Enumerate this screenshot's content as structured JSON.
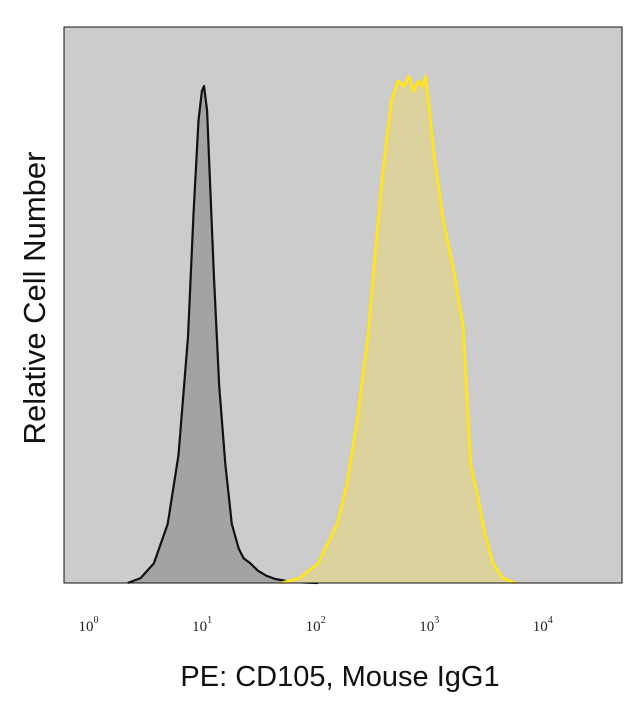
{
  "chart_data": {
    "type": "area",
    "xlabel": "PE: CD105, Mouse IgG1",
    "ylabel": "Relative Cell Number",
    "x_scale": "log",
    "xlim": [
      0.55,
      45000
    ],
    "ylim": [
      0,
      1.13
    ],
    "grid": false,
    "x_ticks": [
      {
        "base": "10",
        "exp": "0",
        "value": 1
      },
      {
        "base": "10",
        "exp": "1",
        "value": 10
      },
      {
        "base": "10",
        "exp": "2",
        "value": 100
      },
      {
        "base": "10",
        "exp": "3",
        "value": 1000
      },
      {
        "base": "10",
        "exp": "4",
        "value": 10000
      }
    ],
    "colors": {
      "plot_background": "#cccccc",
      "control_fill": "#a3a3a3",
      "control_line": "#111111",
      "stained_fill": "#dbd29e",
      "stained_line": "#ffe51a"
    },
    "series": [
      {
        "role": "control",
        "x": [
          2.0,
          2.6,
          3.4,
          4.5,
          5.6,
          6.8,
          7.6,
          8.4,
          9.0,
          9.4,
          10.0,
          10.6,
          11.5,
          12.8,
          14.5,
          16.5,
          19.0,
          21.0,
          24.0,
          28.0,
          33.0,
          40.0,
          50.0,
          70.0,
          95.0
        ],
        "y": [
          0.0,
          0.01,
          0.04,
          0.12,
          0.26,
          0.5,
          0.75,
          0.94,
          1.0,
          1.01,
          0.96,
          0.82,
          0.62,
          0.4,
          0.24,
          0.12,
          0.07,
          0.05,
          0.04,
          0.025,
          0.015,
          0.008,
          0.004,
          0.001,
          0.0
        ]
      },
      {
        "role": "stained",
        "x": [
          45,
          65,
          95,
          140,
          170,
          210,
          260,
          300,
          340,
          380,
          420,
          480,
          540,
          600,
          660,
          720,
          780,
          840,
          920,
          1000,
          1200,
          1500,
          1800,
          2100,
          2400,
          2800,
          3300,
          4000,
          5200
        ],
        "y": [
          0.0,
          0.01,
          0.04,
          0.12,
          0.2,
          0.33,
          0.5,
          0.66,
          0.8,
          0.9,
          0.98,
          1.02,
          1.01,
          1.03,
          1.0,
          1.02,
          1.01,
          1.03,
          0.95,
          0.87,
          0.74,
          0.63,
          0.52,
          0.24,
          0.18,
          0.1,
          0.04,
          0.01,
          0.0
        ]
      }
    ]
  }
}
